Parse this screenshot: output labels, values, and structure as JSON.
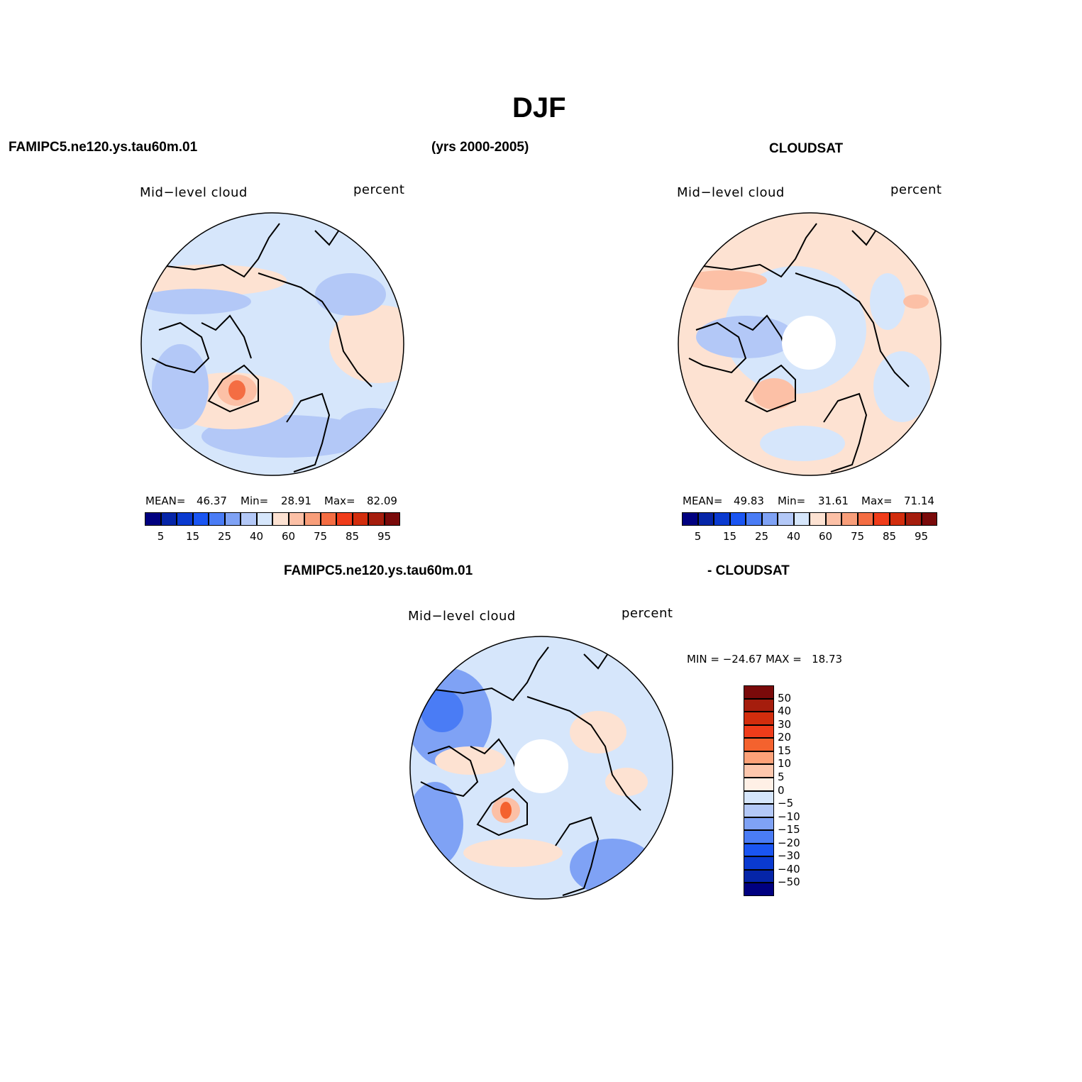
{
  "title": "DJF",
  "header": {
    "left": "FAMIPC5.ne120.ys.tau60m.01",
    "center": "(yrs 2000-2005)",
    "right": "CLOUDSAT"
  },
  "diff_header": {
    "left": "FAMIPC5.ne120.ys.tau60m.01",
    "right": "- CLOUDSAT"
  },
  "colors": {
    "seq": [
      "#000080",
      "#0525a8",
      "#0a3ad0",
      "#1a55f2",
      "#4a7cf5",
      "#7fa2f5",
      "#b3c8f7",
      "#d6e6fb",
      "#fde2d2",
      "#fcc0a6",
      "#f89e7a",
      "#f46d43",
      "#f03c1a",
      "#d22d0d",
      "#a51d0d",
      "#7a0a0a"
    ],
    "diff": [
      "#7a0a0a",
      "#a51d0d",
      "#d22d0d",
      "#f03c1a",
      "#f4622e",
      "#fca178",
      "#fcc7ad",
      "#fff0e6",
      "#d6e6fb",
      "#b3c8f7",
      "#7fa2f5",
      "#4a7cf5",
      "#1a55f2",
      "#0a3ad0",
      "#0525a8",
      "#000080"
    ],
    "land": "#000000"
  },
  "panels": [
    {
      "id": "model",
      "variable": "Mid−level cloud",
      "units": "percent",
      "stats": {
        "mean_label": "MEAN=",
        "mean": "46.37",
        "min_label": "Min=",
        "min": "28.91",
        "max_label": "Max=",
        "max": "82.09"
      },
      "colorbar_ticks": [
        "5",
        "15",
        "25",
        "40",
        "60",
        "75",
        "85",
        "95"
      ]
    },
    {
      "id": "obs",
      "variable": "Mid−level cloud",
      "units": "percent",
      "stats": {
        "mean_label": "MEAN=",
        "mean": "49.83",
        "min_label": "Min=",
        "min": "31.61",
        "max_label": "Max=",
        "max": "71.14"
      },
      "colorbar_ticks": [
        "5",
        "15",
        "25",
        "40",
        "60",
        "75",
        "85",
        "95"
      ]
    },
    {
      "id": "diff",
      "variable": "Mid−level cloud",
      "units": "percent",
      "stats": {
        "text": "MIN = −24.67 MAX =   18.73"
      },
      "colorbar_ticks": [
        "50",
        "40",
        "30",
        "20",
        "15",
        "10",
        "5",
        "0",
        "−5",
        "−10",
        "−15",
        "−20",
        "−30",
        "−40",
        "−50"
      ]
    }
  ]
}
